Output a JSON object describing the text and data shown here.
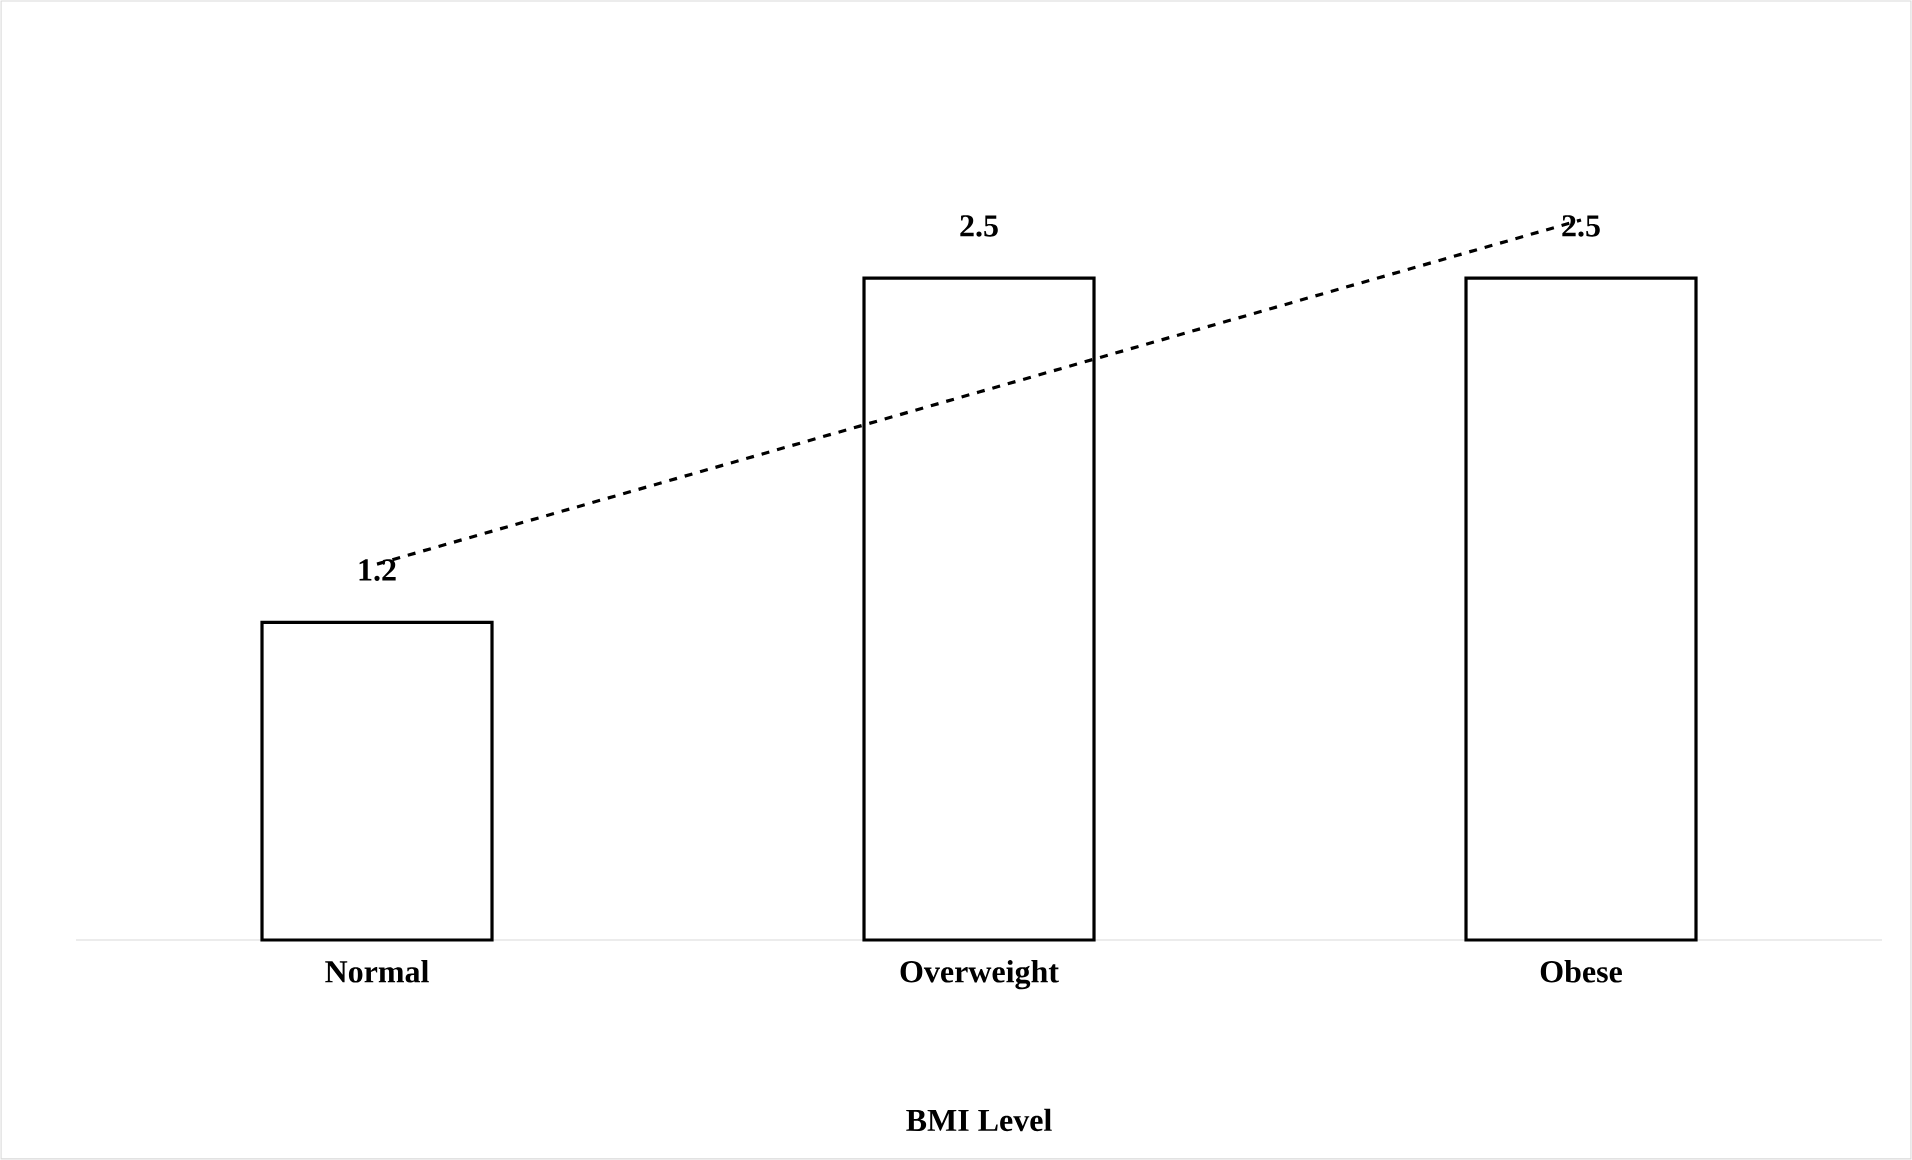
{
  "chart_data": {
    "type": "bar",
    "xlabel": "BMI Level",
    "categories": [
      "Normal",
      "Overweight",
      "Obese"
    ],
    "series": [
      {
        "color": "#000000",
        "values": [
          1.2,
          2.5,
          2.5
        ],
        "value_labels": [
          "1.2",
          "2.5",
          "2.5"
        ]
      },
      {
        "type": "line",
        "color": "#000000",
        "line_style": "dashed",
        "values": [
          1.42,
          2.07,
          2.72
        ]
      }
    ]
  }
}
